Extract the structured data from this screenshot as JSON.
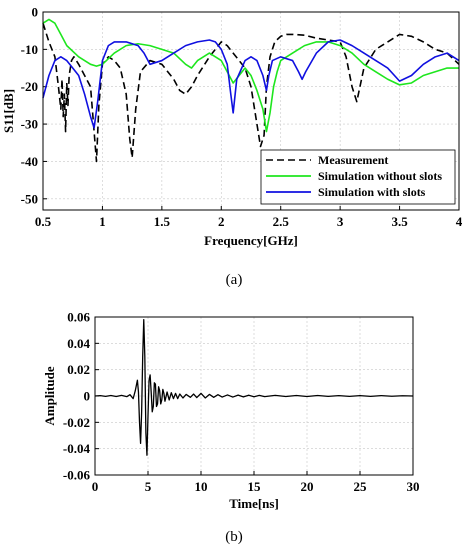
{
  "chart_data": [
    {
      "id": "a",
      "caption": "(a)",
      "type": "line",
      "xlabel": "Frequency[GHz]",
      "ylabel": "S11[dB]",
      "xlim": [
        0.5,
        4
      ],
      "ylim": [
        -53,
        0
      ],
      "xticks": [
        "0.5",
        "1",
        "1.5",
        "2",
        "2.5",
        "3",
        "3.5",
        "4"
      ],
      "yticks": [
        "0",
        "-10",
        "-20",
        "-30",
        "-40",
        "-50"
      ],
      "grid": true,
      "legend_position": "bottom-right",
      "series": [
        {
          "name": "Measurement",
          "color": "#000000",
          "style": "dashed",
          "x": [
            0.5,
            0.55,
            0.6,
            0.63,
            0.65,
            0.66,
            0.67,
            0.68,
            0.69,
            0.7,
            0.71,
            0.72,
            0.74,
            0.76,
            0.8,
            0.85,
            0.9,
            0.93,
            0.95,
            0.97,
            1.0,
            1.05,
            1.1,
            1.15,
            1.2,
            1.23,
            1.25,
            1.28,
            1.32,
            1.4,
            1.5,
            1.6,
            1.65,
            1.7,
            1.75,
            1.8,
            1.9,
            2.0,
            2.05,
            2.1,
            2.15,
            2.2,
            2.25,
            2.3,
            2.33,
            2.36,
            2.38,
            2.41,
            2.45,
            2.5,
            2.55,
            2.6,
            2.7,
            2.8,
            2.9,
            3.0,
            3.05,
            3.1,
            3.14,
            3.2,
            3.3,
            3.4,
            3.5,
            3.6,
            3.7,
            3.8,
            3.9,
            4.0
          ],
          "y": [
            -3,
            -8,
            -12,
            -20,
            -26,
            -18,
            -28,
            -22,
            -32,
            -19,
            -25,
            -17,
            -13,
            -12,
            -14,
            -17,
            -20,
            -32,
            -40,
            -25,
            -14,
            -12,
            -13,
            -15,
            -22,
            -34,
            -39,
            -26,
            -16,
            -13,
            -14,
            -18,
            -21,
            -22,
            -20,
            -17,
            -12,
            -8,
            -9,
            -11,
            -13,
            -15,
            -20,
            -30,
            -36,
            -33,
            -20,
            -12,
            -8,
            -6.5,
            -6,
            -6,
            -6.2,
            -7,
            -7.5,
            -8,
            -12,
            -20,
            -24,
            -15,
            -10,
            -8,
            -6,
            -6.5,
            -8,
            -10,
            -11,
            -14
          ]
        },
        {
          "name": "Simulation without slots",
          "color": "#1ee61e",
          "style": "solid",
          "x": [
            0.5,
            0.55,
            0.6,
            0.65,
            0.7,
            0.8,
            0.9,
            0.95,
            1.0,
            1.1,
            1.2,
            1.3,
            1.4,
            1.5,
            1.6,
            1.7,
            1.75,
            1.8,
            1.9,
            2.0,
            2.05,
            2.1,
            2.15,
            2.2,
            2.25,
            2.3,
            2.35,
            2.38,
            2.41,
            2.44,
            2.47,
            2.5,
            2.6,
            2.7,
            2.8,
            2.9,
            3.0,
            3.1,
            3.2,
            3.3,
            3.4,
            3.5,
            3.6,
            3.7,
            3.8,
            3.9,
            4.0
          ],
          "y": [
            -3,
            -2,
            -3,
            -6,
            -9,
            -12,
            -14,
            -14.5,
            -14,
            -11,
            -9,
            -8.5,
            -9,
            -10,
            -11,
            -14,
            -15,
            -13,
            -11,
            -13,
            -16,
            -19,
            -17,
            -15,
            -17,
            -21,
            -26,
            -32,
            -27,
            -20,
            -16,
            -13,
            -11,
            -9,
            -8,
            -8,
            -9,
            -11,
            -14,
            -16,
            -18,
            -19.5,
            -19,
            -17,
            -16,
            -15,
            -15
          ]
        },
        {
          "name": "Simulation with slots",
          "color": "#1010e0",
          "style": "solid",
          "x": [
            0.5,
            0.55,
            0.6,
            0.65,
            0.7,
            0.75,
            0.8,
            0.85,
            0.9,
            0.93,
            0.96,
            1.0,
            1.05,
            1.1,
            1.2,
            1.3,
            1.35,
            1.4,
            1.5,
            1.6,
            1.7,
            1.8,
            1.9,
            1.95,
            2.0,
            2.05,
            2.08,
            2.1,
            2.13,
            2.2,
            2.25,
            2.3,
            2.35,
            2.38,
            2.4,
            2.43,
            2.5,
            2.6,
            2.65,
            2.68,
            2.71,
            2.8,
            2.9,
            3.0,
            3.1,
            3.2,
            3.3,
            3.4,
            3.5,
            3.6,
            3.7,
            3.8,
            3.9,
            4.0
          ],
          "y": [
            -23,
            -17,
            -13,
            -12,
            -13,
            -15,
            -17,
            -22,
            -28,
            -31,
            -24,
            -13,
            -9,
            -8,
            -8,
            -9,
            -11,
            -14,
            -13,
            -11,
            -9,
            -8,
            -7.5,
            -8,
            -10,
            -14,
            -22,
            -27,
            -18,
            -13,
            -12,
            -13,
            -17,
            -21,
            -17,
            -13,
            -12,
            -13,
            -16,
            -18,
            -16,
            -11,
            -8,
            -7.5,
            -9,
            -11,
            -13,
            -15,
            -18.5,
            -17,
            -14,
            -12,
            -11,
            -13
          ]
        }
      ]
    },
    {
      "id": "b",
      "caption": "(b)",
      "type": "line",
      "xlabel": "Time[ns]",
      "ylabel": "Amplitude",
      "xlim": [
        0,
        30
      ],
      "ylim": [
        -0.06,
        0.06
      ],
      "xticks": [
        "0",
        "5",
        "10",
        "15",
        "20",
        "25",
        "30"
      ],
      "yticks": [
        "0.06",
        "0.04",
        "0.02",
        "0",
        "-0.02",
        "-0.04",
        "-0.06"
      ],
      "grid": true,
      "series": [
        {
          "color": "#000000",
          "style": "solid",
          "x": [
            0,
            0.5,
            1,
            1.5,
            2,
            2.5,
            3,
            3.3,
            3.6,
            3.8,
            4.0,
            4.1,
            4.2,
            4.3,
            4.4,
            4.5,
            4.6,
            4.7,
            4.8,
            4.9,
            5.0,
            5.1,
            5.2,
            5.3,
            5.4,
            5.5,
            5.6,
            5.7,
            5.8,
            5.9,
            6.0,
            6.1,
            6.2,
            6.3,
            6.4,
            6.5,
            6.6,
            6.8,
            7.0,
            7.2,
            7.4,
            7.6,
            7.8,
            8.0,
            8.3,
            8.6,
            9.0,
            9.3,
            9.6,
            10.0,
            10.4,
            10.8,
            11.2,
            11.6,
            12,
            12.5,
            13,
            13.5,
            14,
            14.5,
            15,
            15.5,
            16,
            17,
            18,
            19,
            20,
            21,
            22,
            23,
            24,
            25,
            26,
            27,
            28,
            29,
            30
          ],
          "y": [
            0,
            0.0003,
            -0.0003,
            0.0004,
            -0.0004,
            0.0005,
            -0.0005,
            0.001,
            -0.002,
            0.004,
            0.012,
            0.003,
            -0.02,
            -0.036,
            -0.012,
            0.03,
            0.058,
            0.03,
            -0.028,
            -0.045,
            -0.015,
            0.012,
            0.016,
            0.003,
            -0.012,
            -0.008,
            0.01,
            0.009,
            -0.008,
            -0.006,
            0.007,
            0.004,
            -0.006,
            -0.003,
            0.005,
            0.002,
            -0.004,
            0.003,
            -0.003,
            0.0025,
            -0.002,
            0.002,
            -0.002,
            0.0015,
            -0.0015,
            0.0012,
            -0.001,
            0.0015,
            -0.0012,
            0.002,
            -0.0015,
            0.0012,
            -0.001,
            0.001,
            -0.0008,
            0.0008,
            -0.0008,
            0.0007,
            -0.0007,
            0.0006,
            -0.0006,
            0.0005,
            -0.0005,
            0.0005,
            -0.0004,
            0.0004,
            -0.0004,
            0.0004,
            -0.0003,
            0.0003,
            -0.0003,
            0.0003,
            -0.0003,
            0.0003,
            -0.0002,
            0.0002,
            0
          ]
        }
      ]
    }
  ]
}
